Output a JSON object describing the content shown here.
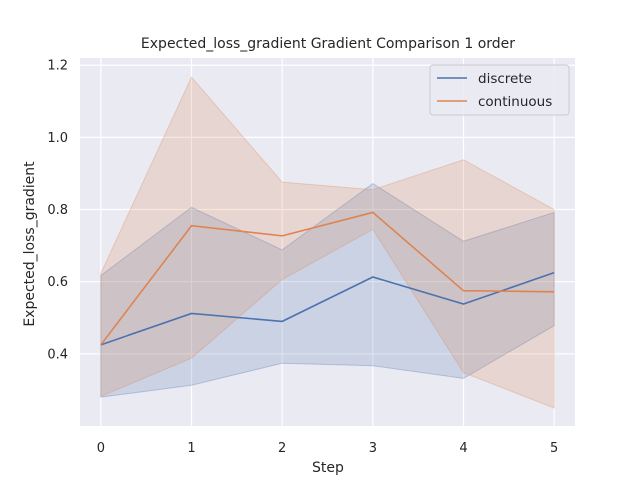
{
  "chart_data": {
    "type": "line",
    "title": "Expected_loss_gradient Gradient Comparison 1 order",
    "xlabel": "Step",
    "ylabel": "Expected_loss_gradient",
    "x": [
      0,
      1,
      2,
      3,
      4,
      5
    ],
    "xlim": [
      -0.23,
      5.23
    ],
    "ylim": [
      0.2,
      1.22
    ],
    "xticks": [
      0,
      1,
      2,
      3,
      4,
      5
    ],
    "yticks": [
      0.4,
      0.6,
      0.8,
      1.0,
      1.2
    ],
    "ytick_labels": [
      "0.4",
      "0.6",
      "0.8",
      "1.0",
      "1.2"
    ],
    "grid": true,
    "legend_position": "top-right",
    "background": "#eaeaf2",
    "series": [
      {
        "name": "discrete",
        "color": "#4c72b0",
        "values": [
          0.425,
          0.512,
          0.49,
          0.613,
          0.538,
          0.625
        ],
        "lower": [
          0.28,
          0.313,
          0.374,
          0.367,
          0.332,
          0.478
        ],
        "upper": [
          0.617,
          0.806,
          0.688,
          0.872,
          0.712,
          0.792
        ]
      },
      {
        "name": "continuous",
        "color": "#dd8452",
        "values": [
          0.425,
          0.755,
          0.727,
          0.792,
          0.575,
          0.572
        ],
        "lower": [
          0.282,
          0.388,
          0.606,
          0.745,
          0.348,
          0.25
        ],
        "upper": [
          0.623,
          1.167,
          0.876,
          0.855,
          0.938,
          0.8
        ]
      }
    ]
  }
}
